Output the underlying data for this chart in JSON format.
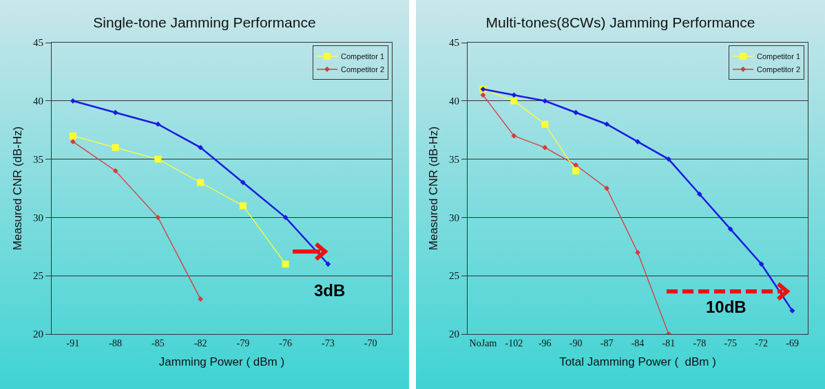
{
  "chart_data": [
    {
      "type": "line",
      "title": "Single-tone Jamming Performance",
      "xlabel": "Jamming Power ( dBm )",
      "ylabel": "Measured CNR (dB-Hz)",
      "categories": [
        "-91",
        "-88",
        "-85",
        "-82",
        "-79",
        "-76",
        "-73",
        "-70"
      ],
      "series": [
        {
          "color": "#1a1ae0",
          "marker": "diamond",
          "values": [
            40,
            39,
            38,
            36,
            33,
            30,
            26,
            null
          ]
        },
        {
          "name": "Competitor 1",
          "color": "#ffff33",
          "marker": "square",
          "values": [
            37,
            36,
            35,
            33,
            31,
            26,
            null,
            null
          ]
        },
        {
          "name": "Competitor 2",
          "color": "#d83a3a",
          "marker": "diamond",
          "values": [
            36.5,
            34,
            30,
            23,
            null,
            null,
            null,
            null
          ]
        }
      ],
      "ylim": [
        20,
        45
      ],
      "yticks": [
        20,
        25,
        30,
        35,
        40,
        45
      ],
      "grid": "y",
      "legend": "top right",
      "annotations": [
        "3dB"
      ]
    },
    {
      "type": "line",
      "title": "Multi-tones(8CWs) Jamming Performance",
      "xlabel": "Total Jamming Power (  dBm )",
      "ylabel": "Measured CNR (dB-Hz)",
      "categories": [
        "NoJam",
        "-102",
        "-96",
        "-90",
        "-87",
        "-84",
        "-81",
        "-78",
        "-75",
        "-72",
        "-69"
      ],
      "series": [
        {
          "color": "#1a1ae0",
          "marker": "diamond",
          "values": [
            41,
            40.5,
            40,
            39,
            38,
            36.5,
            35,
            32,
            29,
            26,
            22
          ]
        },
        {
          "name": "Competitor 1",
          "color": "#ffff33",
          "marker": "square",
          "values": [
            41,
            40,
            38,
            34,
            null,
            null,
            null,
            null,
            null,
            null,
            null
          ]
        },
        {
          "name": "Competitor 2",
          "color": "#d83a3a",
          "marker": "diamond",
          "values": [
            40.5,
            37,
            36,
            34.5,
            32.5,
            27,
            20,
            null,
            null,
            null,
            null
          ]
        }
      ],
      "ylim": [
        20,
        45
      ],
      "yticks": [
        20,
        25,
        30,
        35,
        40,
        45
      ],
      "grid": "y",
      "legend": "top right",
      "annotations": [
        "10dB"
      ]
    }
  ]
}
